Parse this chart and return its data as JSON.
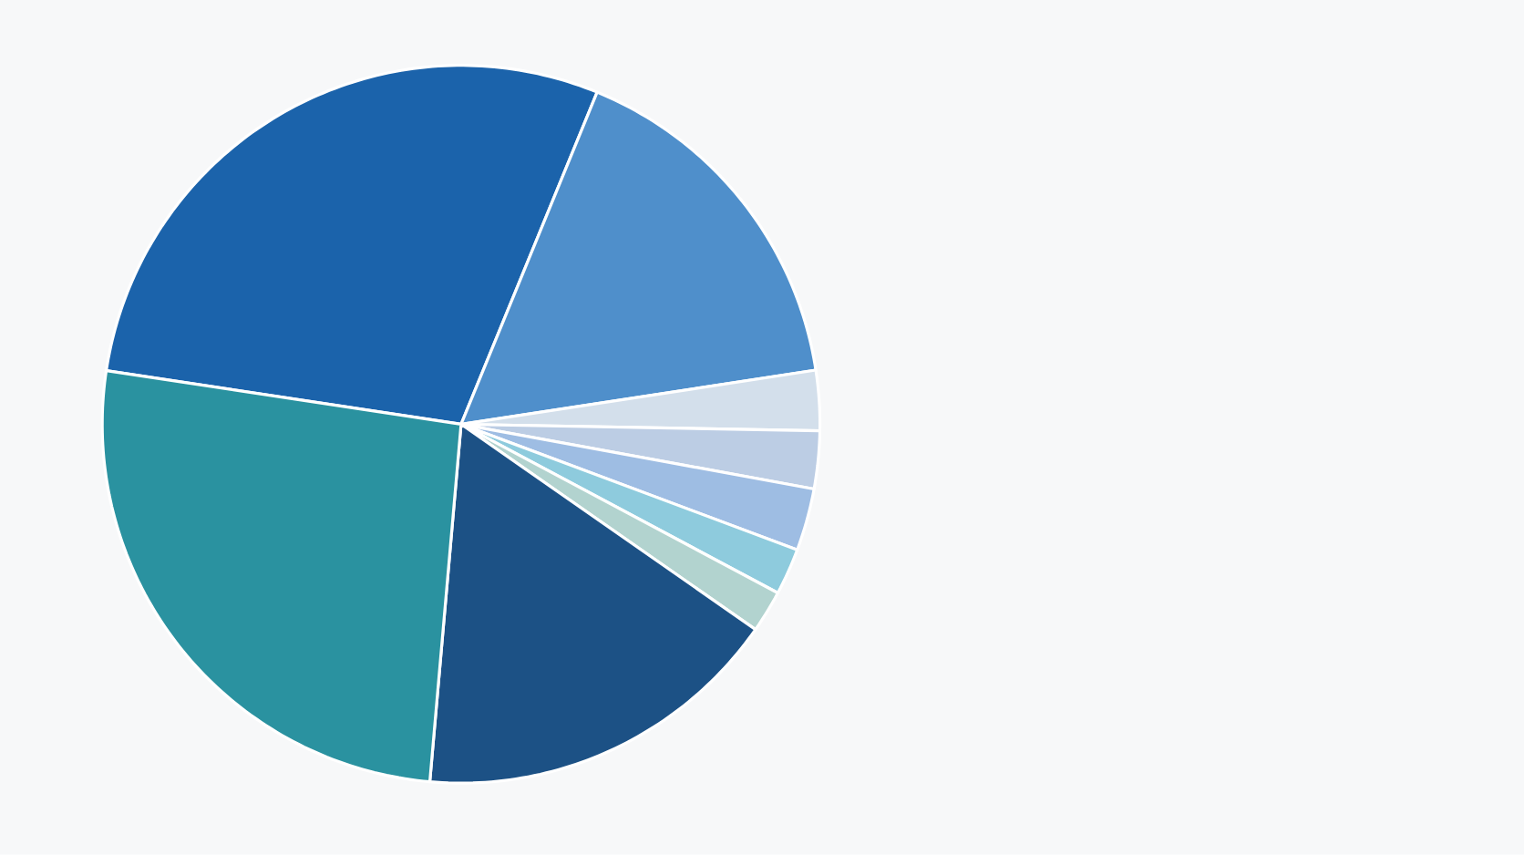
{
  "chart_data": {
    "type": "pie",
    "categories": [
      null,
      null,
      null,
      null,
      null,
      null,
      null,
      null,
      null
    ],
    "values": [
      28.8,
      16.4,
      2.7,
      2.6,
      2.8,
      2.1,
      1.9,
      16.7,
      26.0
    ],
    "colors": [
      "#1b63ab",
      "#4f8fcb",
      "#d3dfeb",
      "#bccde4",
      "#9ebde3",
      "#8ecbdd",
      "#b2d3cf",
      "#1c5185",
      "#2a92a0"
    ]
  }
}
